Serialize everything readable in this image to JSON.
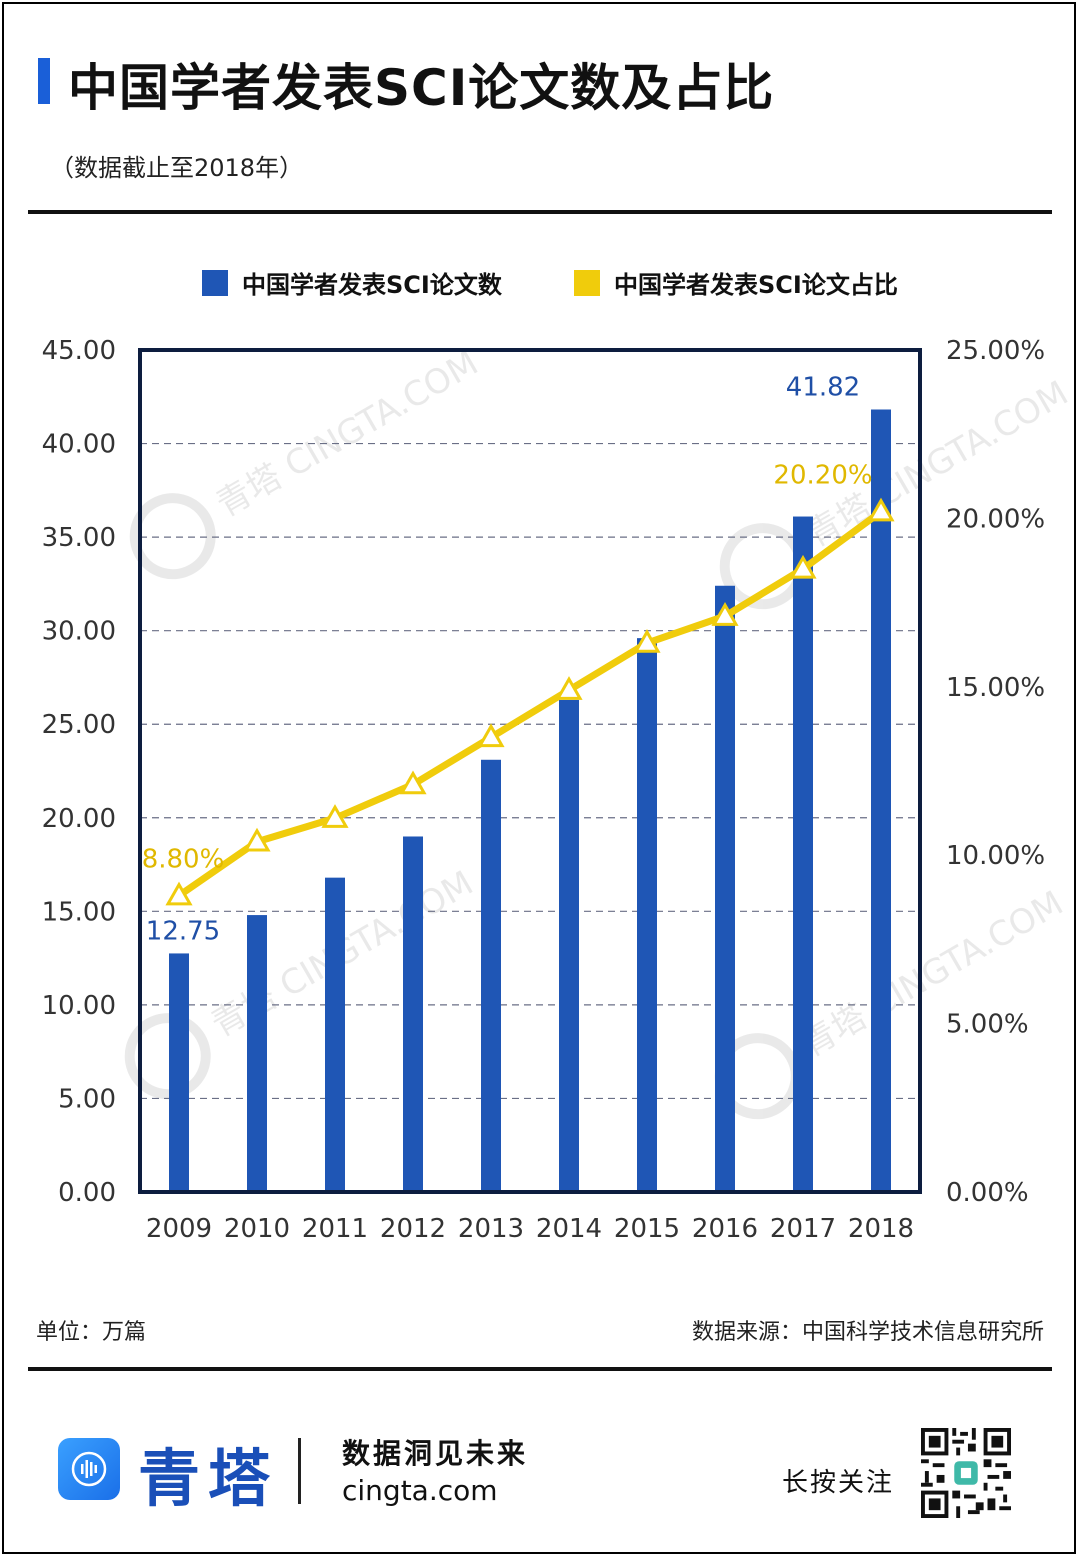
{
  "header": {
    "title": "中国学者发表SCI论文数及占比",
    "subtitle": "（数据截止至2018年）",
    "accent_color": "#1a5fd8"
  },
  "legend": {
    "items": [
      {
        "label": "中国学者发表SCI论文数",
        "color": "#1f56b5"
      },
      {
        "label": "中国学者发表SCI论文占比",
        "color": "#f0cc0c"
      }
    ]
  },
  "chart_data": {
    "type": "bar+line",
    "categories": [
      "2009",
      "2010",
      "2011",
      "2012",
      "2013",
      "2014",
      "2015",
      "2016",
      "2017",
      "2018"
    ],
    "series": [
      {
        "name": "中国学者发表SCI论文数",
        "type": "bar",
        "axis": "left",
        "color": "#1f56b5",
        "values": [
          12.75,
          14.8,
          16.8,
          19.0,
          23.1,
          26.3,
          29.6,
          32.4,
          36.1,
          41.82
        ]
      },
      {
        "name": "中国学者发表SCI论文占比",
        "type": "line",
        "axis": "right",
        "color": "#f0cc0c",
        "values": [
          8.8,
          10.4,
          11.1,
          12.1,
          13.5,
          14.9,
          16.3,
          17.1,
          18.5,
          20.2
        ]
      }
    ],
    "data_labels": [
      {
        "series": 0,
        "index": 0,
        "text": "12.75"
      },
      {
        "series": 0,
        "index": 9,
        "text": "41.82"
      },
      {
        "series": 1,
        "index": 0,
        "text": "8.80%"
      },
      {
        "series": 1,
        "index": 9,
        "text": "20.20%"
      }
    ],
    "left_axis": {
      "ylim": [
        0,
        45
      ],
      "ticks": [
        "0.00",
        "5.00",
        "10.00",
        "15.00",
        "20.00",
        "25.00",
        "30.00",
        "35.00",
        "40.00",
        "45.00"
      ]
    },
    "right_axis": {
      "ylim": [
        0,
        25
      ],
      "ticks": [
        "0.00%",
        "5.00%",
        "10.00%",
        "15.00%",
        "20.00%",
        "25.00%"
      ]
    },
    "grid": "dashed horizontal",
    "legend_position": "top"
  },
  "footer": {
    "unit": "单位：万篇",
    "source": "数据来源：中国科学技术信息研究所"
  },
  "brand": {
    "name": "青塔",
    "slogan": "数据洞见未来",
    "site": "cingta.com",
    "follow": "长按关注",
    "watermark": "青塔 CINGTA.COM",
    "color": "#1a4fb8"
  }
}
